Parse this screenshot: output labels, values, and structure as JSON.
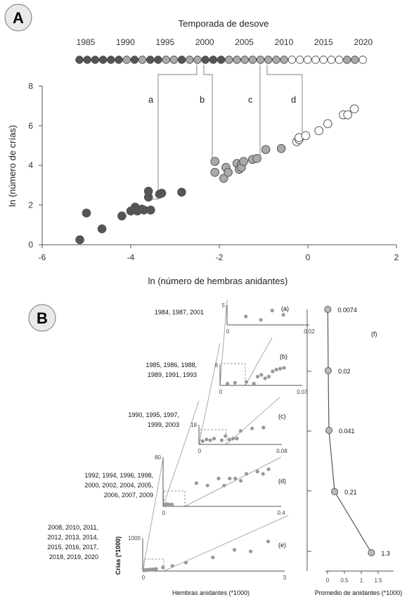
{
  "panel_a": {
    "badge": "A",
    "timeline_title": "Temporada de desove",
    "timeline_ticks": [
      "1985",
      "1990",
      "1995",
      "2000",
      "2005",
      "2010",
      "2015",
      "2020"
    ],
    "group_labels": [
      "a",
      "b",
      "c",
      "d"
    ],
    "xlabel": "ln (número de hembras anidantes)",
    "ylabel": "ln (número de crías)",
    "xticks": [
      "-6",
      "-4",
      "-2",
      "0",
      "2"
    ],
    "yticks": [
      "0",
      "2",
      "4",
      "6",
      "8"
    ],
    "colors": {
      "a": "#555555",
      "b": "#aaaaaa",
      "c": "#aaaaaa",
      "d": "#ffffff"
    }
  },
  "panel_b": {
    "badge": "B",
    "year_groups": [
      [
        "1984, 1987, 2001"
      ],
      [
        "1985, 1986, 1988,",
        "1989, 1991, 1993"
      ],
      [
        "1990, 1995, 1997,",
        "1999, 2003"
      ],
      [
        "1992, 1994, 1996, 1998,",
        "2000, 2002, 2004, 2005,",
        "2006, 2007, 2009"
      ],
      [
        "2008, 2010, 2011,",
        "2012, 2013, 2014,",
        "2015, 2016, 2017,",
        "2018, 2019, 2020"
      ]
    ],
    "subpanel_letters": [
      "(a)",
      "(b)",
      "(c)",
      "(d)",
      "(e)",
      "(f)"
    ],
    "sub_ymax": [
      "5",
      "8",
      "18",
      "80",
      "1000"
    ],
    "sub_xmax": [
      "0.02",
      "0.03",
      "0.08",
      "0.4",
      "3"
    ],
    "sub_xmin": "0",
    "xlabel": "Hembras anidantes (*1000)",
    "ylabel": "Crías (*1000)",
    "f_xlabel": "Promedio de anidantes (*1000)",
    "f_xticks": [
      "0",
      "0.5",
      "1",
      "1.5"
    ],
    "f_value_labels": [
      "0.0074",
      "0.02",
      "0.041",
      "0.21",
      "1.3"
    ]
  },
  "chart_data": [
    {
      "type": "scatter",
      "xlabel": "ln (número de hembras anidantes)",
      "ylabel": "ln (número de crías)",
      "xlim": [
        -6,
        2
      ],
      "ylim": [
        0,
        8
      ],
      "series": [
        {
          "name": "a",
          "points": [
            [
              -5.15,
              0.25
            ],
            [
              -5.0,
              1.6
            ],
            [
              -4.65,
              0.8
            ],
            [
              -4.2,
              1.45
            ],
            [
              -4.0,
              1.7
            ],
            [
              -3.9,
              1.9
            ],
            [
              -3.85,
              1.7
            ],
            [
              -3.75,
              1.8
            ],
            [
              -3.7,
              1.75
            ],
            [
              -3.6,
              2.4
            ],
            [
              -3.6,
              2.7
            ],
            [
              -3.55,
              1.75
            ],
            [
              -3.35,
              2.55
            ],
            [
              -3.3,
              2.6
            ],
            [
              -2.85,
              2.65
            ]
          ]
        },
        {
          "name": "b",
          "points": [
            [
              -2.1,
              4.2
            ],
            [
              -2.1,
              3.65
            ],
            [
              -1.9,
              3.35
            ],
            [
              -1.85,
              3.9
            ],
            [
              -1.8,
              3.65
            ],
            [
              -1.6,
              4.1
            ],
            [
              -1.55,
              3.8
            ],
            [
              -1.5,
              4.05
            ],
            [
              -1.5,
              3.9
            ],
            [
              -1.45,
              4.2
            ]
          ]
        },
        {
          "name": "c",
          "points": [
            [
              -1.25,
              4.3
            ],
            [
              -1.15,
              4.35
            ],
            [
              -0.95,
              4.8
            ],
            [
              -0.6,
              4.85
            ]
          ]
        },
        {
          "name": "d",
          "points": [
            [
              -0.25,
              5.2
            ],
            [
              -0.2,
              5.3
            ],
            [
              -0.2,
              5.4
            ],
            [
              -0.05,
              5.5
            ],
            [
              0.25,
              5.75
            ],
            [
              0.45,
              6.1
            ],
            [
              0.8,
              6.55
            ],
            [
              0.9,
              6.55
            ],
            [
              1.05,
              6.85
            ]
          ]
        }
      ]
    },
    {
      "type": "line",
      "xlabel": "Promedio de anidantes (*1000)",
      "xlim": [
        0,
        1.5
      ],
      "series": [
        {
          "name": "(f)",
          "values": [
            0.0074,
            0.02,
            0.041,
            0.21,
            1.3
          ]
        }
      ]
    }
  ]
}
